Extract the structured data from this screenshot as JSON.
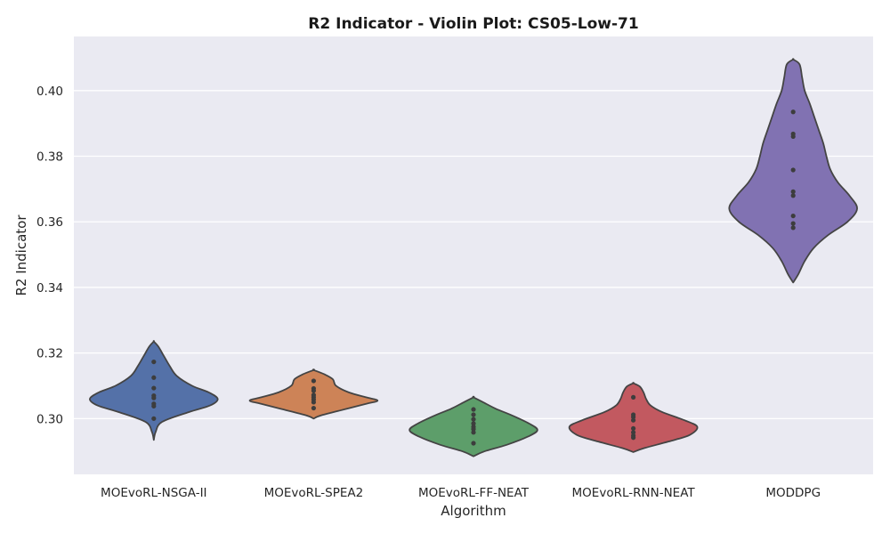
{
  "chart_data": {
    "type": "violin",
    "title": "R2 Indicator - Violin Plot: CS05-Low-71",
    "xlabel": "Algorithm",
    "ylabel": "R2 Indicator",
    "categories": [
      "MOEvoRL-NSGA-II",
      "MOEvoRL-SPEA2",
      "MOEvoRL-FF-NEAT",
      "MOEvoRL-RNN-NEAT",
      "MODDPG"
    ],
    "yticks": [
      0.3,
      0.32,
      0.34,
      0.36,
      0.38,
      0.4
    ],
    "ytick_labels": [
      "0.30",
      "0.32",
      "0.34",
      "0.36",
      "0.38",
      "0.40"
    ],
    "ylim": [
      0.283,
      0.4165
    ],
    "grid": true,
    "series": [
      {
        "category": "MOEvoRL-NSGA-II",
        "color": "#5471a8",
        "points": [
          0.3173,
          0.3125,
          0.3093,
          0.307,
          0.3063,
          0.3045,
          0.3038,
          0.3
        ],
        "profile": [
          [
            0.2935,
            0.0
          ],
          [
            0.296,
            0.03
          ],
          [
            0.299,
            0.13
          ],
          [
            0.302,
            0.55
          ],
          [
            0.304,
            0.88
          ],
          [
            0.306,
            1.0
          ],
          [
            0.308,
            0.86
          ],
          [
            0.31,
            0.6
          ],
          [
            0.313,
            0.36
          ],
          [
            0.316,
            0.25
          ],
          [
            0.319,
            0.16
          ],
          [
            0.322,
            0.07
          ],
          [
            0.3235,
            0.0
          ]
        ]
      },
      {
        "category": "MOEvoRL-SPEA2",
        "color": "#cd8357",
        "points": [
          0.3115,
          0.3092,
          0.3085,
          0.3072,
          0.3065,
          0.3058,
          0.305,
          0.3032
        ],
        "profile": [
          [
            0.3,
            0.0
          ],
          [
            0.301,
            0.12
          ],
          [
            0.303,
            0.52
          ],
          [
            0.3045,
            0.82
          ],
          [
            0.3055,
            1.0
          ],
          [
            0.3065,
            0.82
          ],
          [
            0.308,
            0.55
          ],
          [
            0.31,
            0.35
          ],
          [
            0.312,
            0.3
          ],
          [
            0.3135,
            0.17
          ],
          [
            0.3148,
            0.0
          ]
        ]
      },
      {
        "category": "MOEvoRL-FF-NEAT",
        "color": "#5d9e6a",
        "points": [
          0.3028,
          0.3012,
          0.2998,
          0.2985,
          0.2975,
          0.2968,
          0.2958,
          0.2925
        ],
        "profile": [
          [
            0.2885,
            0.0
          ],
          [
            0.29,
            0.17
          ],
          [
            0.292,
            0.52
          ],
          [
            0.2945,
            0.85
          ],
          [
            0.2965,
            1.0
          ],
          [
            0.2985,
            0.87
          ],
          [
            0.301,
            0.6
          ],
          [
            0.303,
            0.35
          ],
          [
            0.305,
            0.15
          ],
          [
            0.3065,
            0.0
          ]
        ]
      },
      {
        "category": "MOEvoRL-RNN-NEAT",
        "color": "#c25960",
        "points": [
          0.3065,
          0.3012,
          0.3005,
          0.2995,
          0.297,
          0.2958,
          0.2948,
          0.2942
        ],
        "profile": [
          [
            0.2898,
            0.0
          ],
          [
            0.291,
            0.17
          ],
          [
            0.293,
            0.55
          ],
          [
            0.295,
            0.88
          ],
          [
            0.2975,
            1.0
          ],
          [
            0.2995,
            0.8
          ],
          [
            0.302,
            0.45
          ],
          [
            0.304,
            0.27
          ],
          [
            0.306,
            0.2
          ],
          [
            0.308,
            0.16
          ],
          [
            0.3098,
            0.1
          ],
          [
            0.3108,
            0.0
          ]
        ]
      },
      {
        "category": "MODDPG",
        "color": "#8172b2",
        "points": [
          0.3935,
          0.3868,
          0.386,
          0.3758,
          0.3692,
          0.368,
          0.3618,
          0.3595,
          0.3582
        ],
        "profile": [
          [
            0.3415,
            0.0
          ],
          [
            0.344,
            0.08
          ],
          [
            0.348,
            0.18
          ],
          [
            0.352,
            0.32
          ],
          [
            0.356,
            0.55
          ],
          [
            0.36,
            0.85
          ],
          [
            0.364,
            1.0
          ],
          [
            0.368,
            0.88
          ],
          [
            0.372,
            0.7
          ],
          [
            0.376,
            0.58
          ],
          [
            0.38,
            0.52
          ],
          [
            0.384,
            0.47
          ],
          [
            0.388,
            0.4
          ],
          [
            0.392,
            0.33
          ],
          [
            0.396,
            0.26
          ],
          [
            0.4,
            0.18
          ],
          [
            0.404,
            0.14
          ],
          [
            0.408,
            0.1
          ],
          [
            0.4095,
            0.0
          ]
        ]
      }
    ]
  }
}
